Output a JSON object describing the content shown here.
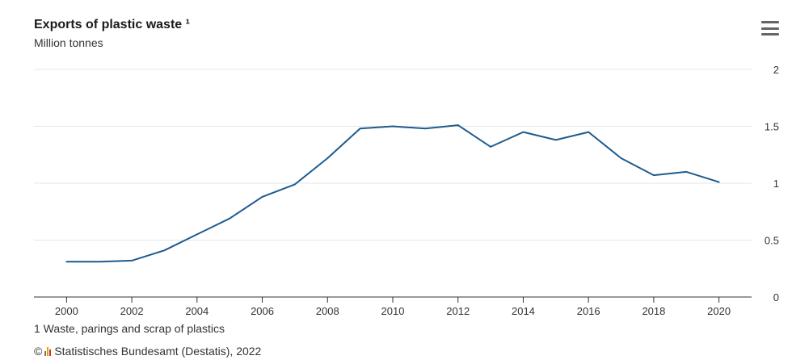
{
  "header": {
    "title": "Exports of plastic waste ¹",
    "subtitle": "Million tonnes",
    "menu_icon": "hamburger-menu-icon"
  },
  "footer": {
    "footnote": "1 Waste, parings and scrap of plastics",
    "copyright_symbol": "©",
    "credits": "Statistisches Bundesamt (Destatis), 2022",
    "logo_icon": "destatis-logo-icon"
  },
  "chart_data": {
    "type": "line",
    "title": "Exports of plastic waste ¹",
    "subtitle": "Million tonnes",
    "xlabel": "",
    "ylabel": "",
    "x": [
      2000,
      2001,
      2002,
      2003,
      2004,
      2005,
      2006,
      2007,
      2008,
      2009,
      2010,
      2011,
      2012,
      2013,
      2014,
      2015,
      2016,
      2017,
      2018,
      2019,
      2020
    ],
    "series": [
      {
        "color": "#1d5b8f",
        "values": [
          0.31,
          0.31,
          0.32,
          0.41,
          0.55,
          0.69,
          0.88,
          0.99,
          1.22,
          1.48,
          1.5,
          1.48,
          1.51,
          1.32,
          1.45,
          1.38,
          1.45,
          1.22,
          1.07,
          1.1,
          1.01
        ]
      }
    ],
    "xlim": [
      1999,
      2021
    ],
    "ylim": [
      0,
      2
    ],
    "x_ticks": [
      "2000",
      "2002",
      "2004",
      "2006",
      "2008",
      "2010",
      "2012",
      "2014",
      "2016",
      "2018",
      "2020"
    ],
    "y_ticks": [
      "0",
      "0.5",
      "1",
      "1.5",
      "2"
    ],
    "y_axis_position": "right",
    "grid": true,
    "legend": "none"
  }
}
